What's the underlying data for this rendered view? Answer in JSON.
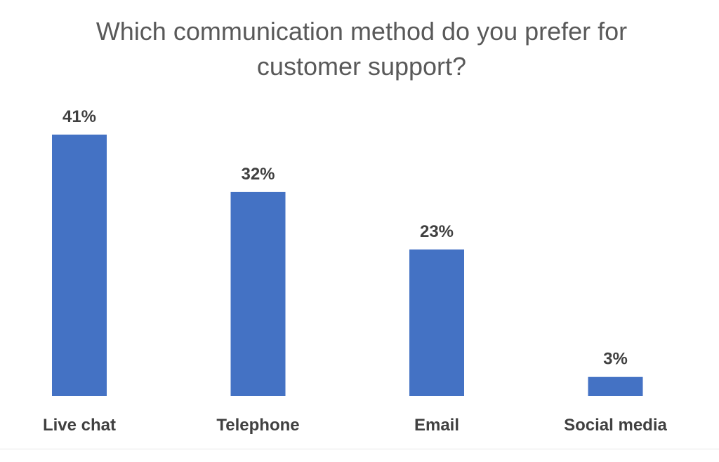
{
  "chart_data": {
    "type": "bar",
    "title": "Which communication method do you prefer for customer support?",
    "categories": [
      "Live chat",
      "Telephone",
      "Email",
      "Social media"
    ],
    "values": [
      41,
      32,
      23,
      3
    ],
    "data_labels": [
      "41%",
      "32%",
      "23%",
      "3%"
    ],
    "unit": "%",
    "xlabel": "",
    "ylabel": "",
    "ylim": [
      0,
      41
    ],
    "grid": false,
    "legend": "none",
    "colors": {
      "bar": "#4472C4",
      "title": "#595959",
      "labels": "#404040"
    }
  }
}
